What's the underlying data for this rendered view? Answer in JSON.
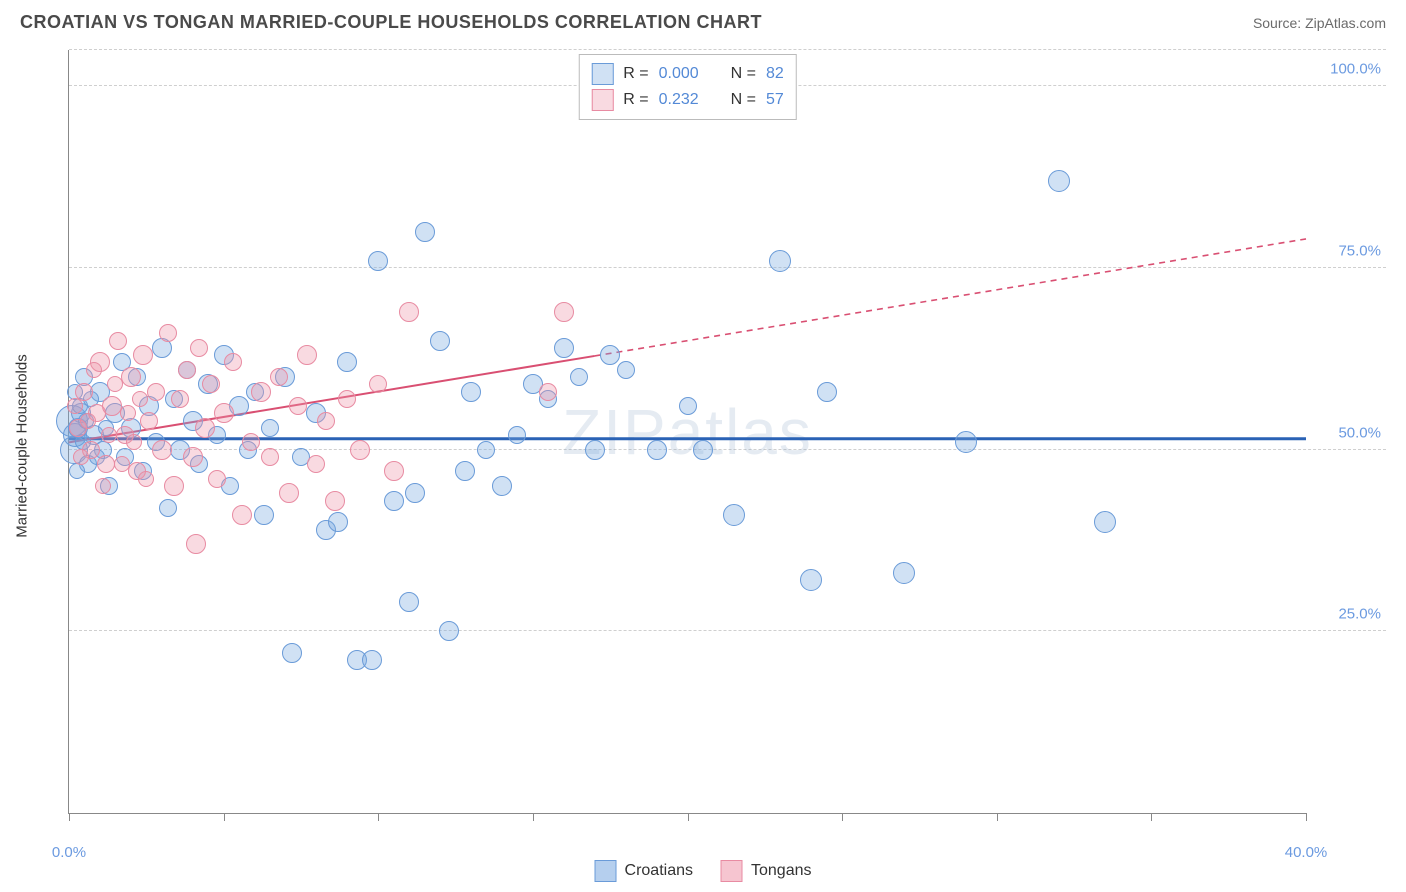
{
  "header": {
    "title": "CROATIAN VS TONGAN MARRIED-COUPLE HOUSEHOLDS CORRELATION CHART",
    "source": "Source: ZipAtlas.com"
  },
  "chart": {
    "type": "scatter",
    "ylabel": "Married-couple Households",
    "watermark": "ZIPatlas",
    "xlim": [
      0,
      40
    ],
    "ylim": [
      0,
      105
    ],
    "xtick_positions": [
      0,
      5,
      10,
      15,
      20,
      25,
      30,
      35,
      40
    ],
    "xtick_labels_shown": {
      "0": "0.0%",
      "40": "40.0%"
    },
    "ytick_positions": [
      25,
      50,
      75,
      100
    ],
    "ytick_labels": {
      "25": "25.0%",
      "50": "50.0%",
      "75": "75.0%",
      "100": "100.0%"
    },
    "grid_color": "#cfcfcf",
    "background_color": "#ffffff",
    "axis_color": "#888888",
    "tick_label_color": "#6b9ae0",
    "label_fontsize": 15,
    "title_fontsize": 18,
    "series": [
      {
        "name": "Croatians",
        "fill_color": "rgba(120,168,224,0.35)",
        "stroke_color": "#6a9bd8",
        "marker_radius": 10,
        "trend": {
          "slope": 0.0,
          "intercept": 51.5,
          "color": "#2a62b5",
          "width": 3,
          "solid_xmax": 40
        },
        "R": "0.000",
        "N": "82",
        "points": [
          {
            "x": 0.1,
            "y": 54,
            "r": 16
          },
          {
            "x": 0.15,
            "y": 50,
            "r": 14
          },
          {
            "x": 0.2,
            "y": 52,
            "r": 12
          },
          {
            "x": 0.3,
            "y": 53,
            "r": 10
          },
          {
            "x": 0.4,
            "y": 55,
            "r": 10
          },
          {
            "x": 0.5,
            "y": 60,
            "r": 9
          },
          {
            "x": 0.6,
            "y": 48,
            "r": 9
          },
          {
            "x": 0.8,
            "y": 52,
            "r": 10
          },
          {
            "x": 1.0,
            "y": 58,
            "r": 10
          },
          {
            "x": 1.1,
            "y": 50,
            "r": 9
          },
          {
            "x": 1.3,
            "y": 45,
            "r": 9
          },
          {
            "x": 1.5,
            "y": 55,
            "r": 10
          },
          {
            "x": 1.7,
            "y": 62,
            "r": 9
          },
          {
            "x": 1.8,
            "y": 49,
            "r": 9
          },
          {
            "x": 2.0,
            "y": 53,
            "r": 10
          },
          {
            "x": 2.2,
            "y": 60,
            "r": 9
          },
          {
            "x": 2.4,
            "y": 47,
            "r": 9
          },
          {
            "x": 2.6,
            "y": 56,
            "r": 10
          },
          {
            "x": 2.8,
            "y": 51,
            "r": 9
          },
          {
            "x": 3.0,
            "y": 64,
            "r": 10
          },
          {
            "x": 3.2,
            "y": 42,
            "r": 9
          },
          {
            "x": 3.4,
            "y": 57,
            "r": 9
          },
          {
            "x": 3.6,
            "y": 50,
            "r": 10
          },
          {
            "x": 3.8,
            "y": 61,
            "r": 9
          },
          {
            "x": 4.0,
            "y": 54,
            "r": 10
          },
          {
            "x": 4.2,
            "y": 48,
            "r": 9
          },
          {
            "x": 4.5,
            "y": 59,
            "r": 10
          },
          {
            "x": 4.8,
            "y": 52,
            "r": 9
          },
          {
            "x": 5.0,
            "y": 63,
            "r": 10
          },
          {
            "x": 5.2,
            "y": 45,
            "r": 9
          },
          {
            "x": 5.5,
            "y": 56,
            "r": 10
          },
          {
            "x": 5.8,
            "y": 50,
            "r": 9
          },
          {
            "x": 6.0,
            "y": 58,
            "r": 9
          },
          {
            "x": 6.3,
            "y": 41,
            "r": 10
          },
          {
            "x": 6.5,
            "y": 53,
            "r": 9
          },
          {
            "x": 7.0,
            "y": 60,
            "r": 10
          },
          {
            "x": 7.2,
            "y": 22,
            "r": 10
          },
          {
            "x": 7.5,
            "y": 49,
            "r": 9
          },
          {
            "x": 8.0,
            "y": 55,
            "r": 10
          },
          {
            "x": 8.3,
            "y": 39,
            "r": 10
          },
          {
            "x": 8.7,
            "y": 40,
            "r": 10
          },
          {
            "x": 9.0,
            "y": 62,
            "r": 10
          },
          {
            "x": 9.3,
            "y": 21,
            "r": 10
          },
          {
            "x": 9.8,
            "y": 21,
            "r": 10
          },
          {
            "x": 10.0,
            "y": 76,
            "r": 10
          },
          {
            "x": 10.5,
            "y": 43,
            "r": 10
          },
          {
            "x": 11.0,
            "y": 29,
            "r": 10
          },
          {
            "x": 11.2,
            "y": 44,
            "r": 10
          },
          {
            "x": 11.5,
            "y": 80,
            "r": 10
          },
          {
            "x": 12.0,
            "y": 65,
            "r": 10
          },
          {
            "x": 12.3,
            "y": 25,
            "r": 10
          },
          {
            "x": 12.8,
            "y": 47,
            "r": 10
          },
          {
            "x": 13.0,
            "y": 58,
            "r": 10
          },
          {
            "x": 13.5,
            "y": 50,
            "r": 9
          },
          {
            "x": 14.0,
            "y": 45,
            "r": 10
          },
          {
            "x": 14.5,
            "y": 52,
            "r": 9
          },
          {
            "x": 15.0,
            "y": 59,
            "r": 10
          },
          {
            "x": 15.5,
            "y": 57,
            "r": 9
          },
          {
            "x": 16.0,
            "y": 64,
            "r": 10
          },
          {
            "x": 16.5,
            "y": 60,
            "r": 9
          },
          {
            "x": 17.0,
            "y": 50,
            "r": 10
          },
          {
            "x": 17.5,
            "y": 63,
            "r": 10
          },
          {
            "x": 18.0,
            "y": 61,
            "r": 9
          },
          {
            "x": 19.0,
            "y": 50,
            "r": 10
          },
          {
            "x": 20.0,
            "y": 56,
            "r": 9
          },
          {
            "x": 20.5,
            "y": 50,
            "r": 10
          },
          {
            "x": 21.5,
            "y": 41,
            "r": 11
          },
          {
            "x": 23.0,
            "y": 76,
            "r": 11
          },
          {
            "x": 24.0,
            "y": 32,
            "r": 11
          },
          {
            "x": 24.5,
            "y": 58,
            "r": 10
          },
          {
            "x": 27.0,
            "y": 33,
            "r": 11
          },
          {
            "x": 29.0,
            "y": 51,
            "r": 11
          },
          {
            "x": 32.0,
            "y": 87,
            "r": 11
          },
          {
            "x": 33.5,
            "y": 40,
            "r": 11
          },
          {
            "x": 0.2,
            "y": 58,
            "r": 8
          },
          {
            "x": 0.25,
            "y": 47,
            "r": 8
          },
          {
            "x": 0.35,
            "y": 56,
            "r": 8
          },
          {
            "x": 0.45,
            "y": 51,
            "r": 8
          },
          {
            "x": 0.55,
            "y": 54,
            "r": 8
          },
          {
            "x": 0.7,
            "y": 57,
            "r": 8
          },
          {
            "x": 0.9,
            "y": 49,
            "r": 8
          },
          {
            "x": 1.2,
            "y": 53,
            "r": 8
          }
        ]
      },
      {
        "name": "Tongans",
        "fill_color": "rgba(239,150,170,0.35)",
        "stroke_color": "#e88ba2",
        "marker_radius": 10,
        "trend": {
          "slope": 0.7,
          "intercept": 51.0,
          "color": "#d94f72",
          "width": 2,
          "solid_xmax": 17,
          "dash_after": true
        },
        "R": "0.232",
        "N": "57",
        "points": [
          {
            "x": 0.3,
            "y": 53,
            "r": 9
          },
          {
            "x": 0.5,
            "y": 58,
            "r": 9
          },
          {
            "x": 0.7,
            "y": 50,
            "r": 9
          },
          {
            "x": 0.9,
            "y": 55,
            "r": 9
          },
          {
            "x": 1.0,
            "y": 62,
            "r": 10
          },
          {
            "x": 1.2,
            "y": 48,
            "r": 9
          },
          {
            "x": 1.4,
            "y": 56,
            "r": 10
          },
          {
            "x": 1.6,
            "y": 65,
            "r": 9
          },
          {
            "x": 1.8,
            "y": 52,
            "r": 9
          },
          {
            "x": 2.0,
            "y": 60,
            "r": 10
          },
          {
            "x": 2.2,
            "y": 47,
            "r": 9
          },
          {
            "x": 2.4,
            "y": 63,
            "r": 10
          },
          {
            "x": 2.6,
            "y": 54,
            "r": 9
          },
          {
            "x": 2.8,
            "y": 58,
            "r": 9
          },
          {
            "x": 3.0,
            "y": 50,
            "r": 10
          },
          {
            "x": 3.2,
            "y": 66,
            "r": 9
          },
          {
            "x": 3.4,
            "y": 45,
            "r": 10
          },
          {
            "x": 3.6,
            "y": 57,
            "r": 9
          },
          {
            "x": 3.8,
            "y": 61,
            "r": 9
          },
          {
            "x": 4.0,
            "y": 49,
            "r": 10
          },
          {
            "x": 4.2,
            "y": 64,
            "r": 9
          },
          {
            "x": 4.4,
            "y": 53,
            "r": 10
          },
          {
            "x": 4.6,
            "y": 59,
            "r": 9
          },
          {
            "x": 4.8,
            "y": 46,
            "r": 9
          },
          {
            "x": 5.0,
            "y": 55,
            "r": 10
          },
          {
            "x": 5.3,
            "y": 62,
            "r": 9
          },
          {
            "x": 5.6,
            "y": 41,
            "r": 10
          },
          {
            "x": 5.9,
            "y": 51,
            "r": 9
          },
          {
            "x": 6.2,
            "y": 58,
            "r": 10
          },
          {
            "x": 6.5,
            "y": 49,
            "r": 9
          },
          {
            "x": 6.8,
            "y": 60,
            "r": 9
          },
          {
            "x": 7.1,
            "y": 44,
            "r": 10
          },
          {
            "x": 7.4,
            "y": 56,
            "r": 9
          },
          {
            "x": 7.7,
            "y": 63,
            "r": 10
          },
          {
            "x": 8.0,
            "y": 48,
            "r": 9
          },
          {
            "x": 8.3,
            "y": 54,
            "r": 9
          },
          {
            "x": 8.6,
            "y": 43,
            "r": 10
          },
          {
            "x": 9.0,
            "y": 57,
            "r": 9
          },
          {
            "x": 9.4,
            "y": 50,
            "r": 10
          },
          {
            "x": 10.0,
            "y": 59,
            "r": 9
          },
          {
            "x": 10.5,
            "y": 47,
            "r": 10
          },
          {
            "x": 11.0,
            "y": 69,
            "r": 10
          },
          {
            "x": 0.2,
            "y": 56,
            "r": 8
          },
          {
            "x": 0.4,
            "y": 49,
            "r": 8
          },
          {
            "x": 0.6,
            "y": 54,
            "r": 8
          },
          {
            "x": 0.8,
            "y": 61,
            "r": 8
          },
          {
            "x": 1.1,
            "y": 45,
            "r": 8
          },
          {
            "x": 1.3,
            "y": 52,
            "r": 8
          },
          {
            "x": 1.5,
            "y": 59,
            "r": 8
          },
          {
            "x": 1.7,
            "y": 48,
            "r": 8
          },
          {
            "x": 1.9,
            "y": 55,
            "r": 8
          },
          {
            "x": 2.1,
            "y": 51,
            "r": 8
          },
          {
            "x": 2.3,
            "y": 57,
            "r": 8
          },
          {
            "x": 2.5,
            "y": 46,
            "r": 8
          },
          {
            "x": 4.1,
            "y": 37,
            "r": 10
          },
          {
            "x": 16.0,
            "y": 69,
            "r": 10
          },
          {
            "x": 15.5,
            "y": 58,
            "r": 9
          }
        ]
      }
    ],
    "legend_bottom": [
      {
        "label": "Croatians",
        "fill": "rgba(120,168,224,0.55)",
        "border": "#6a9bd8"
      },
      {
        "label": "Tongans",
        "fill": "rgba(239,150,170,0.55)",
        "border": "#e88ba2"
      }
    ],
    "legend_top_labels": {
      "R": "R =",
      "N": "N ="
    }
  }
}
